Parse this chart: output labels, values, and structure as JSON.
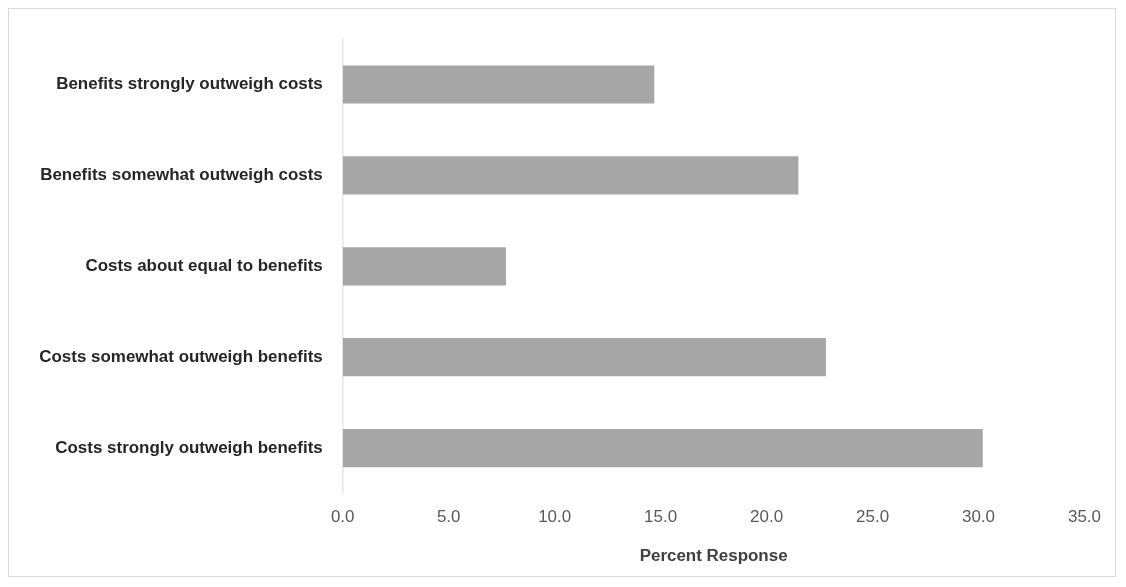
{
  "chart_data": {
    "type": "bar",
    "orientation": "horizontal",
    "xlabel": "Percent Response",
    "categories": [
      "Benefits strongly outweigh costs",
      "Benefits somewhat outweigh costs",
      "Costs about equal to benefits",
      "Costs somewhat outweigh benefits",
      "Costs strongly outweigh benefits"
    ],
    "values": [
      14.7,
      21.5,
      7.7,
      22.8,
      30.2
    ],
    "color": "#a6a6a6",
    "xlim": [
      0,
      35
    ],
    "xticks": [
      {
        "value": 0,
        "label": "0.0"
      },
      {
        "value": 5,
        "label": "5.0"
      },
      {
        "value": 10,
        "label": "10.0"
      },
      {
        "value": 15,
        "label": "15.0"
      },
      {
        "value": 20,
        "label": "20.0"
      },
      {
        "value": 25,
        "label": "25.0"
      },
      {
        "value": 30,
        "label": "30.0"
      },
      {
        "value": 35,
        "label": "35.0"
      }
    ],
    "grid": false,
    "legend": false
  }
}
